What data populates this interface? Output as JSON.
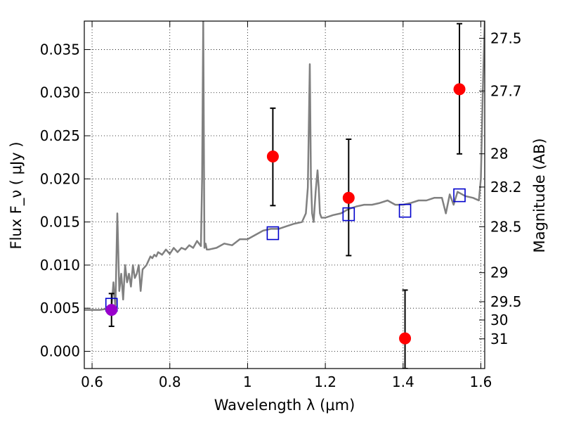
{
  "chart_data": {
    "type": "scatter",
    "xlabel": "Wavelength  λ (μm)",
    "ylabel": "Flux  F_ν  ( μJy )",
    "ylabel_right": "Magnitude (AB)",
    "xlim": [
      0.58,
      1.61
    ],
    "ylim": [
      -0.002,
      0.0383
    ],
    "grid": true,
    "x_ticks": [
      {
        "value": 0.6,
        "label": "0.6"
      },
      {
        "value": 0.8,
        "label": "0.8"
      },
      {
        "value": 1.0,
        "label": "1"
      },
      {
        "value": 1.2,
        "label": "1.2"
      },
      {
        "value": 1.4,
        "label": "1.4"
      },
      {
        "value": 1.6,
        "label": "1.6"
      }
    ],
    "y_ticks": [
      {
        "value": 0.0,
        "label": "0.000"
      },
      {
        "value": 0.005,
        "label": "0.005"
      },
      {
        "value": 0.01,
        "label": "0.010"
      },
      {
        "value": 0.015,
        "label": "0.015"
      },
      {
        "value": 0.02,
        "label": "0.020"
      },
      {
        "value": 0.025,
        "label": "0.025"
      },
      {
        "value": 0.03,
        "label": "0.030"
      },
      {
        "value": 0.035,
        "label": "0.035"
      }
    ],
    "magnitude_ticks": [
      {
        "value": 27.5,
        "label": "27.5"
      },
      {
        "value": 27.7,
        "label": "27.7"
      },
      {
        "value": 28.0,
        "label": "28"
      },
      {
        "value": 28.2,
        "label": "28.2"
      },
      {
        "value": 28.5,
        "label": "28.5"
      },
      {
        "value": 29.0,
        "label": "29"
      },
      {
        "value": 29.5,
        "label": "29.5"
      },
      {
        "value": 30.0,
        "label": "30"
      },
      {
        "value": 31.0,
        "label": "31"
      }
    ],
    "series": [
      {
        "kind": "spectrum",
        "color": "#808080",
        "x": [
          0.58,
          0.6,
          0.62,
          0.635,
          0.645,
          0.65,
          0.655,
          0.66,
          0.665,
          0.67,
          0.675,
          0.68,
          0.685,
          0.69,
          0.695,
          0.7,
          0.705,
          0.71,
          0.715,
          0.72,
          0.725,
          0.73,
          0.74,
          0.745,
          0.75,
          0.755,
          0.76,
          0.765,
          0.77,
          0.78,
          0.79,
          0.8,
          0.81,
          0.82,
          0.83,
          0.84,
          0.85,
          0.86,
          0.87,
          0.88,
          0.883,
          0.886,
          0.889,
          0.892,
          0.895,
          0.9,
          0.92,
          0.94,
          0.96,
          0.98,
          1.0,
          1.02,
          1.04,
          1.06,
          1.08,
          1.1,
          1.12,
          1.14,
          1.15,
          1.155,
          1.16,
          1.163,
          1.166,
          1.17,
          1.175,
          1.18,
          1.183,
          1.186,
          1.19,
          1.2,
          1.22,
          1.24,
          1.26,
          1.28,
          1.3,
          1.32,
          1.34,
          1.36,
          1.38,
          1.4,
          1.42,
          1.44,
          1.46,
          1.48,
          1.5,
          1.51,
          1.52,
          1.53,
          1.54,
          1.56,
          1.58,
          1.595,
          1.6,
          1.605,
          1.61
        ],
        "y": [
          0.0048,
          0.0048,
          0.0048,
          0.0049,
          0.0049,
          0.005,
          0.008,
          0.005,
          0.016,
          0.007,
          0.009,
          0.006,
          0.01,
          0.008,
          0.009,
          0.0075,
          0.01,
          0.0085,
          0.009,
          0.01,
          0.007,
          0.0095,
          0.01,
          0.0105,
          0.011,
          0.0108,
          0.0112,
          0.011,
          0.0115,
          0.0112,
          0.0118,
          0.0113,
          0.012,
          0.0115,
          0.012,
          0.0118,
          0.0123,
          0.012,
          0.0128,
          0.0122,
          0.02,
          0.0383,
          0.012,
          0.0125,
          0.0118,
          0.0118,
          0.012,
          0.0125,
          0.0123,
          0.013,
          0.013,
          0.0135,
          0.014,
          0.0142,
          0.0142,
          0.0145,
          0.0148,
          0.015,
          0.016,
          0.019,
          0.0333,
          0.02,
          0.016,
          0.015,
          0.0185,
          0.021,
          0.019,
          0.016,
          0.0155,
          0.0155,
          0.0158,
          0.016,
          0.0165,
          0.0168,
          0.017,
          0.017,
          0.0172,
          0.0175,
          0.017,
          0.017,
          0.0172,
          0.0175,
          0.0175,
          0.0178,
          0.0178,
          0.016,
          0.0182,
          0.017,
          0.0185,
          0.018,
          0.0178,
          0.0175,
          0.02,
          0.03,
          0.0383
        ]
      },
      {
        "kind": "model",
        "marker": "open-square",
        "color": "#0000cc",
        "x": [
          0.65,
          1.065,
          1.26,
          1.405,
          1.545
        ],
        "y": [
          0.0054,
          0.0137,
          0.0159,
          0.0163,
          0.0181
        ]
      },
      {
        "kind": "observed",
        "marker": "filled-circle",
        "color": "#ff0000",
        "x": [
          1.065,
          1.26,
          1.405,
          1.545
        ],
        "y": [
          0.0226,
          0.0178,
          0.0015,
          0.0304
        ],
        "yerr_low": [
          0.0169,
          0.0111,
          -0.002,
          0.0229
        ],
        "yerr_high": [
          0.0282,
          0.0246,
          0.0071,
          0.038
        ]
      },
      {
        "kind": "observed",
        "marker": "filled-circle",
        "color": "#9900cc",
        "x": [
          0.65
        ],
        "y": [
          0.0048
        ],
        "yerr_low": [
          0.0029
        ],
        "yerr_high": [
          0.0067
        ]
      }
    ]
  }
}
